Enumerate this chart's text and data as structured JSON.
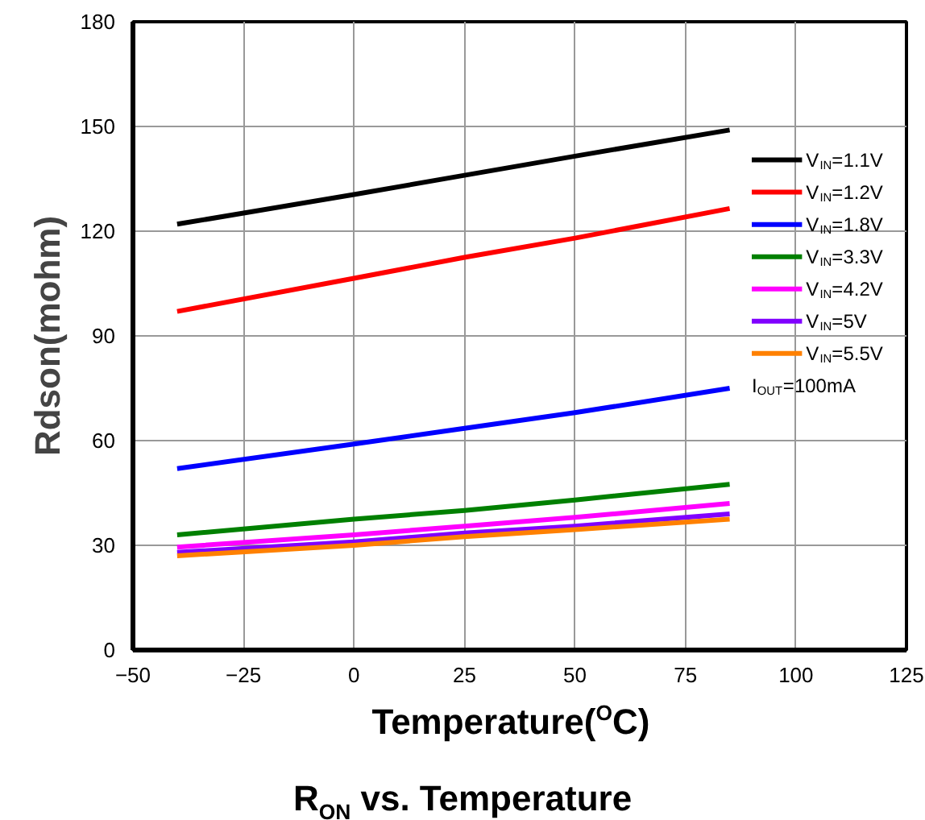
{
  "chart_data": {
    "type": "line",
    "title": "R$_{ON}$ vs. Temperature",
    "xlabel": "Temperature($^{O}$C)",
    "ylabel": "Rdson(mohm)",
    "x": [
      -40,
      0,
      25,
      50,
      85
    ],
    "series": [
      {
        "name": "V$_{IN}$=1.1V",
        "color": "#000000",
        "values": [
          122,
          130.5,
          136,
          141.5,
          149
        ]
      },
      {
        "name": "V$_{IN}$=1.2V",
        "color": "#ff0000",
        "values": [
          97,
          106.5,
          112.5,
          118,
          126.5
        ]
      },
      {
        "name": "V$_{IN}$=1.8V",
        "color": "#0000ff",
        "values": [
          52,
          59,
          63.5,
          68,
          75
        ]
      },
      {
        "name": "V$_{IN}$=3.3V",
        "color": "#008000",
        "values": [
          33,
          37.5,
          40,
          43,
          47.5
        ]
      },
      {
        "name": "V$_{IN}$=4.2V",
        "color": "#ff00ff",
        "values": [
          29.5,
          33,
          35.5,
          38,
          42
        ]
      },
      {
        "name": "V$_{IN}$=5V",
        "color": "#8000ff",
        "values": [
          28,
          31,
          33.5,
          35.5,
          39
        ]
      },
      {
        "name": "V$_{IN}$=5.5V",
        "color": "#ff8000",
        "values": [
          27,
          30,
          32.5,
          34.5,
          37.5
        ]
      }
    ],
    "annotations": [
      "I$_{OUT}$=100mA"
    ],
    "xlim": [
      -50,
      125
    ],
    "xticks": [
      -50,
      -25,
      0,
      25,
      50,
      75,
      100,
      125
    ],
    "ylim": [
      0,
      180
    ],
    "yticks": [
      0,
      30,
      60,
      90,
      120,
      150,
      180
    ],
    "grid": true,
    "legend": "right",
    "marker": "none",
    "line_style": "solid"
  }
}
